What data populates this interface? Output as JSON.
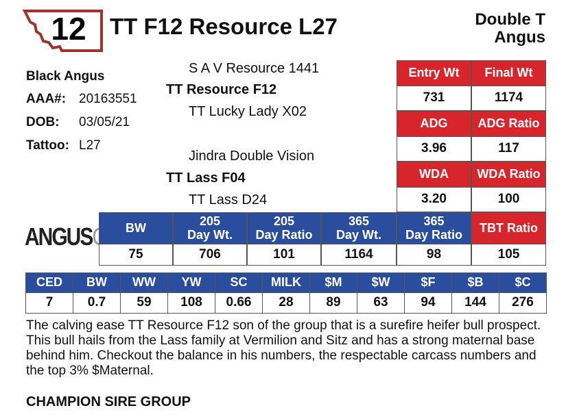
{
  "lot": "12",
  "title": "TT F12 Resource L27",
  "consignor": [
    "Double T",
    "Angus"
  ],
  "info": {
    "breed": "Black Angus",
    "rows": [
      [
        "AAA#:",
        "20163551"
      ],
      [
        "DOB:",
        "03/05/21"
      ],
      [
        "Tattoo:",
        "L27"
      ]
    ]
  },
  "pedigree": {
    "sire_sire": "S A V Resource 1441",
    "sire": "TT Resource F12",
    "sire_dam": "TT Lucky Lady X02",
    "dam_sire": "Jindra Double Vision",
    "dam": "TT Lass F04",
    "dam_dam": "TT Lass D24"
  },
  "performance": {
    "rows": [
      {
        "headers": [
          "Entry Wt",
          "Final Wt"
        ],
        "values": [
          "731",
          "1174"
        ]
      },
      {
        "headers": [
          "ADG",
          "ADG Ratio"
        ],
        "values": [
          "3.96",
          "117"
        ]
      },
      {
        "headers": [
          "WDA",
          "WDA Ratio"
        ],
        "values": [
          "3.20",
          "100"
        ]
      }
    ]
  },
  "logo": {
    "name": "ANGUS",
    "suffix": "GS"
  },
  "weights": {
    "headers": [
      [
        "BW"
      ],
      [
        "205",
        "Day Wt."
      ],
      [
        "205",
        "Day Ratio"
      ],
      [
        "365",
        "Day Wt."
      ],
      [
        "365",
        "Day Ratio"
      ],
      [
        "TBT Ratio"
      ]
    ],
    "values": [
      "75",
      "706",
      "101",
      "1164",
      "98",
      "105"
    ]
  },
  "epds": {
    "headers": [
      "CED",
      "BW",
      "WW",
      "YW",
      "SC",
      "MILK",
      "$M",
      "$W",
      "$F",
      "$B",
      "$C"
    ],
    "values": [
      "7",
      "0.7",
      "59",
      "108",
      "0.66",
      "28",
      "89",
      "63",
      "94",
      "144",
      "276"
    ]
  },
  "description": "The calving ease TT Resource F12 son of the group that is a surefire heifer bull prospect. This bull hails from the Lass family at Vermilion and Sitz and has a strong maternal base behind him. Checkout the balance in his numbers, the respectable carcass numbers and the top 3% $Maternal.",
  "footer": "CHAMPION SIRE GROUP"
}
